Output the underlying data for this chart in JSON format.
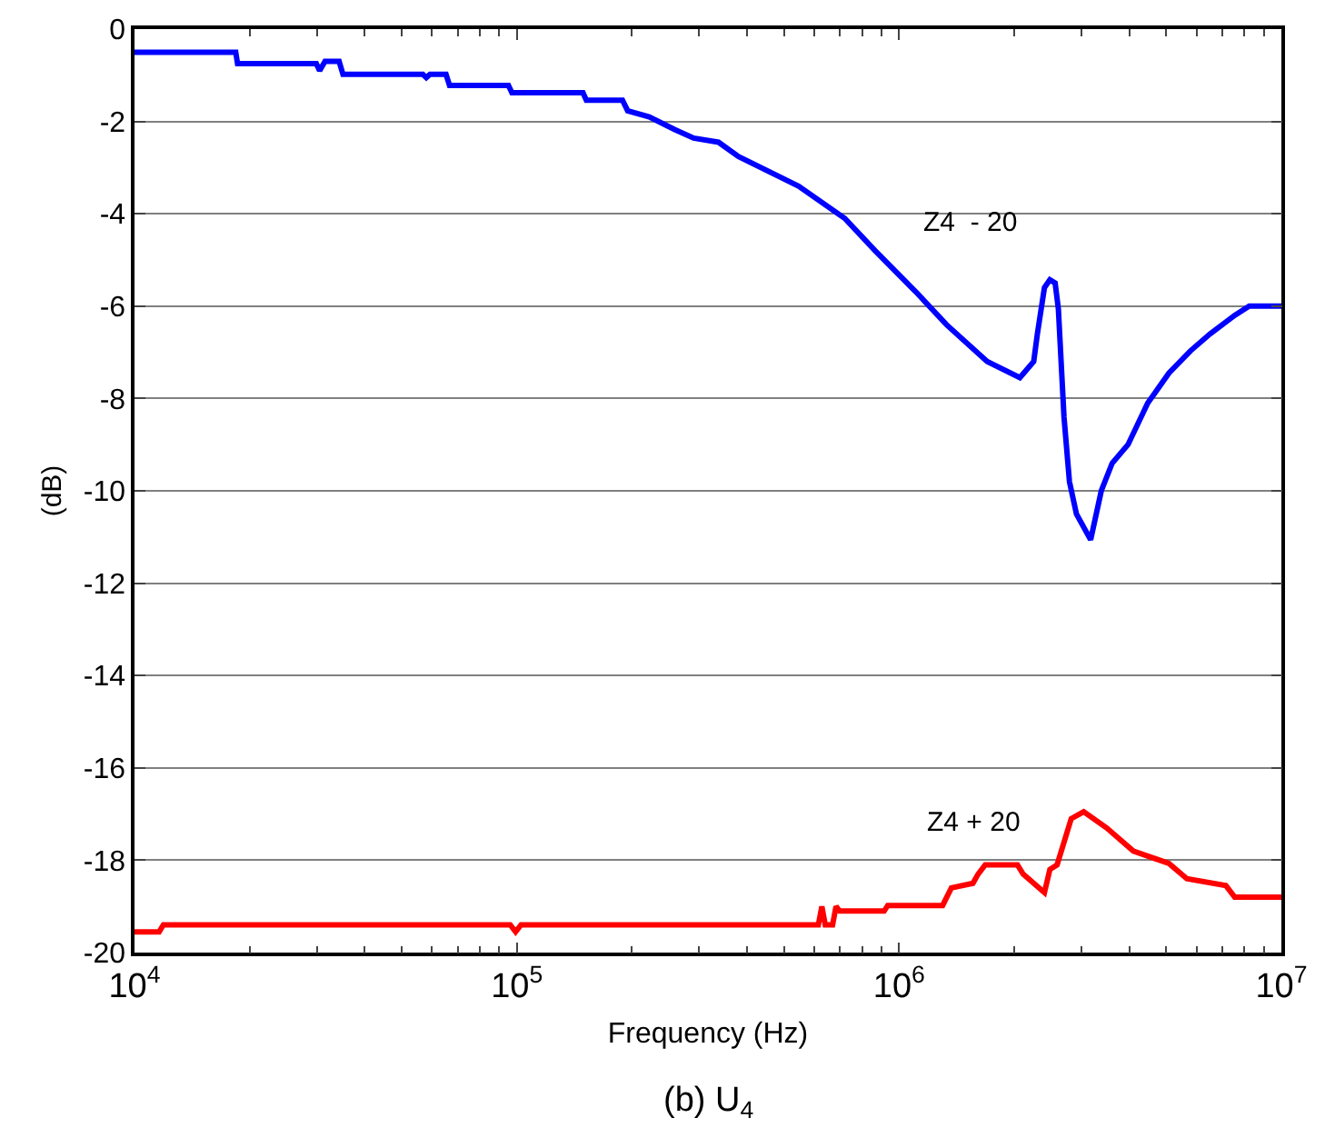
{
  "chart_data": {
    "type": "line",
    "xlabel": "Frequency (Hz)",
    "ylabel": "(dB)",
    "annotations": [
      "(b) U$_{4}$"
    ],
    "log": "x",
    "grid": "y",
    "legend": false,
    "marker": "none",
    "line_style": "solid",
    "xlim": [
      10000,
      10000000
    ],
    "xticks": [
      {
        "value": 10000,
        "label": "10$^{4}$"
      },
      {
        "value": 100000,
        "label": "10$^{5}$"
      },
      {
        "value": 1000000,
        "label": "10$^{6}$"
      },
      {
        "value": 10000000,
        "label": "10$^{7}$"
      }
    ],
    "ylim": [
      -20,
      0
    ],
    "yticks": [
      0,
      -2,
      -4,
      -6,
      -8,
      -10,
      -12,
      -14,
      -16,
      -18,
      -20
    ],
    "series": [
      {
        "name": "Z4  - 20",
        "color": "#0000ff",
        "x": [
          10000,
          18400,
          18600,
          29900,
          30500,
          31500,
          34300,
          35100,
          56800,
          58000,
          59300,
          65300,
          66700,
          95100,
          97100,
          149000,
          152000,
          189000,
          195000,
          222000,
          258000,
          290000,
          337000,
          380000,
          546000,
          721000,
          866000,
          1109000,
          1330000,
          1700000,
          2070000,
          2250000,
          2300000,
          2400000,
          2480000,
          2560000,
          2610000,
          2700000,
          2790000,
          2910000,
          3170000,
          3380000,
          3610000,
          3970000,
          4470000,
          5080000,
          5780000,
          6510000,
          7550000,
          8240000,
          10000000
        ],
        "values": [
          -0.5,
          -0.5,
          -0.75,
          -0.75,
          -0.9,
          -0.7,
          -0.7,
          -0.98,
          -0.98,
          -1.05,
          -0.98,
          -0.98,
          -1.22,
          -1.22,
          -1.38,
          -1.38,
          -1.54,
          -1.54,
          -1.77,
          -1.9,
          -2.17,
          -2.36,
          -2.45,
          -2.76,
          -3.4,
          -4.1,
          -4.8,
          -5.7,
          -6.4,
          -7.2,
          -7.55,
          -7.2,
          -6.6,
          -5.6,
          -5.43,
          -5.5,
          -6.06,
          -8.4,
          -9.8,
          -10.5,
          -11.06,
          -10,
          -9.4,
          -9,
          -8.1,
          -7.45,
          -6.97,
          -6.6,
          -6.2,
          -6,
          -6
        ]
      },
      {
        "name": "Z4 + 20",
        "color": "#ff0000",
        "x": [
          10000,
          11600,
          11900,
          96100,
          99300,
          102600,
          615000,
          628000,
          641000,
          670000,
          684000,
          699000,
          914000,
          934000,
          1300000,
          1370000,
          1560000,
          1610000,
          1680000,
          2040000,
          2110000,
          2400000,
          2480000,
          2590000,
          2820000,
          3040000,
          3490000,
          4100000,
          5080000,
          5660000,
          7160000,
          7550000,
          10000000
        ],
        "values": [
          -19.55,
          -19.55,
          -19.4,
          -19.4,
          -19.55,
          -19.4,
          -19.4,
          -19.0,
          -19.4,
          -19.4,
          -19.0,
          -19.1,
          -19.1,
          -18.98,
          -18.98,
          -18.6,
          -18.5,
          -18.3,
          -18.1,
          -18.1,
          -18.3,
          -18.7,
          -18.2,
          -18.1,
          -17.1,
          -16.95,
          -17.3,
          -17.8,
          -18.07,
          -18.4,
          -18.55,
          -18.8,
          -18.8
        ]
      }
    ]
  }
}
